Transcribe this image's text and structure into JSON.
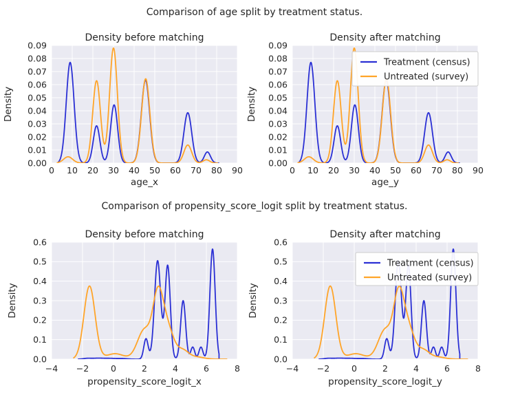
{
  "figure": {
    "row_titles": [
      "Comparison of age split by treatment status.",
      "Comparison of propensity_score_logit split by treatment status."
    ]
  },
  "colors": {
    "treatment": "#2a2fd4",
    "untreated": "#ffa428",
    "panel_bg": "#eaeaf2",
    "grid": "#ffffff",
    "text": "#262626",
    "legend_bg": "#ffffff",
    "legend_border": "#cccccc"
  },
  "legend": {
    "items": [
      {
        "label": "Treatment (census)",
        "color_key": "treatment"
      },
      {
        "label": "Untreated (survey)",
        "color_key": "untreated"
      }
    ]
  },
  "chart_data": [
    {
      "type": "line",
      "kind": "kde-density",
      "title": "Density before matching",
      "xlabel": "age_x",
      "ylabel": "Density",
      "xlim": [
        0,
        90
      ],
      "ylim": [
        0,
        0.09
      ],
      "xticks": [
        0,
        10,
        20,
        30,
        40,
        50,
        60,
        70,
        80,
        90
      ],
      "xtick_labels": [
        "0",
        "10",
        "20",
        "30",
        "40",
        "50",
        "60",
        "70",
        "80",
        "90"
      ],
      "yticks": [
        0,
        0.01,
        0.02,
        0.03,
        0.04,
        0.05,
        0.06,
        0.07,
        0.08,
        0.09
      ],
      "ytick_labels": [
        "0.00",
        "0.01",
        "0.02",
        "0.03",
        "0.04",
        "0.05",
        "0.06",
        "0.07",
        "0.08",
        "0.09"
      ],
      "grid": true,
      "show_legend": false,
      "series": [
        {
          "name": "Treatment (census)",
          "color_key": "treatment",
          "domain": [
            3.2,
            81
          ],
          "components": [
            {
              "mu": 9.0,
              "sigma": 1.9,
              "peak": 0.077
            },
            {
              "mu": 21.8,
              "sigma": 1.6,
              "peak": 0.0285
            },
            {
              "mu": 30.3,
              "sigma": 1.7,
              "peak": 0.0445
            },
            {
              "mu": 45.5,
              "sigma": 2.0,
              "peak": 0.0635
            },
            {
              "mu": 66.0,
              "sigma": 1.9,
              "peak": 0.0385
            },
            {
              "mu": 75.5,
              "sigma": 1.5,
              "peak": 0.0085
            }
          ]
        },
        {
          "name": "Untreated (survey)",
          "color_key": "untreated",
          "domain": [
            2.5,
            80.5
          ],
          "components": [
            {
              "mu": 8.0,
              "sigma": 2.2,
              "peak": 0.0048
            },
            {
              "mu": 21.8,
              "sigma": 1.9,
              "peak": 0.063
            },
            {
              "mu": 30.0,
              "sigma": 1.9,
              "peak": 0.088
            },
            {
              "mu": 45.6,
              "sigma": 2.0,
              "peak": 0.0645
            },
            {
              "mu": 66.0,
              "sigma": 1.9,
              "peak": 0.0138
            },
            {
              "mu": 75.0,
              "sigma": 1.6,
              "peak": 0.0025
            }
          ]
        }
      ]
    },
    {
      "type": "line",
      "kind": "kde-density",
      "title": "Density after matching",
      "xlabel": "age_y",
      "ylabel": "Density",
      "xlim": [
        0,
        90
      ],
      "ylim": [
        0,
        0.09
      ],
      "xticks": [
        0,
        10,
        20,
        30,
        40,
        50,
        60,
        70,
        80,
        90
      ],
      "xtick_labels": [
        "0",
        "10",
        "20",
        "30",
        "40",
        "50",
        "60",
        "70",
        "80",
        "90"
      ],
      "yticks": [
        0,
        0.01,
        0.02,
        0.03,
        0.04,
        0.05,
        0.06,
        0.07,
        0.08,
        0.09
      ],
      "ytick_labels": [
        "0.00",
        "0.01",
        "0.02",
        "0.03",
        "0.04",
        "0.05",
        "0.06",
        "0.07",
        "0.08",
        "0.09"
      ],
      "grid": true,
      "show_legend": true,
      "series": [
        {
          "name": "Treatment (census)",
          "color_key": "treatment",
          "domain": [
            3.2,
            81
          ],
          "components": [
            {
              "mu": 9.0,
              "sigma": 1.9,
              "peak": 0.077
            },
            {
              "mu": 21.8,
              "sigma": 1.6,
              "peak": 0.0285
            },
            {
              "mu": 30.3,
              "sigma": 1.7,
              "peak": 0.0445
            },
            {
              "mu": 45.5,
              "sigma": 2.0,
              "peak": 0.0635
            },
            {
              "mu": 66.0,
              "sigma": 1.9,
              "peak": 0.0385
            },
            {
              "mu": 75.5,
              "sigma": 1.5,
              "peak": 0.0085
            }
          ]
        },
        {
          "name": "Untreated (survey)",
          "color_key": "untreated",
          "domain": [
            2.5,
            80.5
          ],
          "components": [
            {
              "mu": 8.0,
              "sigma": 2.2,
              "peak": 0.0048
            },
            {
              "mu": 21.8,
              "sigma": 1.9,
              "peak": 0.063
            },
            {
              "mu": 30.0,
              "sigma": 1.9,
              "peak": 0.088
            },
            {
              "mu": 45.6,
              "sigma": 2.0,
              "peak": 0.0645
            },
            {
              "mu": 66.0,
              "sigma": 1.9,
              "peak": 0.0138
            },
            {
              "mu": 75.0,
              "sigma": 1.6,
              "peak": 0.0025
            }
          ]
        }
      ]
    },
    {
      "type": "line",
      "kind": "kde-density",
      "title": "Density before matching",
      "xlabel": "propensity_score_logit_x",
      "ylabel": "Density",
      "xlim": [
        -4,
        8
      ],
      "ylim": [
        0,
        0.6
      ],
      "xticks": [
        -4,
        -2,
        0,
        2,
        4,
        6,
        8
      ],
      "xtick_labels": [
        "−4",
        "−2",
        "0",
        "2",
        "4",
        "6",
        "8"
      ],
      "yticks": [
        0,
        0.1,
        0.2,
        0.3,
        0.4,
        0.5,
        0.6
      ],
      "ytick_labels": [
        "0.0",
        "0.1",
        "0.2",
        "0.3",
        "0.4",
        "0.5",
        "0.6"
      ],
      "grid": true,
      "show_legend": false,
      "series": [
        {
          "name": "Treatment (census)",
          "color_key": "treatment",
          "domain": [
            -2.3,
            6.82
          ],
          "components": [
            {
              "mu": -1.7,
              "sigma": 0.25,
              "peak": 0.004
            },
            {
              "mu": -1.0,
              "sigma": 0.35,
              "peak": 0.005
            },
            {
              "mu": -0.2,
              "sigma": 0.35,
              "peak": 0.004
            },
            {
              "mu": 0.6,
              "sigma": 0.3,
              "peak": 0.003
            },
            {
              "mu": 2.1,
              "sigma": 0.14,
              "peak": 0.105
            },
            {
              "mu": 2.85,
              "sigma": 0.2,
              "peak": 0.505
            },
            {
              "mu": 3.5,
              "sigma": 0.17,
              "peak": 0.48
            },
            {
              "mu": 4.5,
              "sigma": 0.16,
              "peak": 0.3
            },
            {
              "mu": 5.12,
              "sigma": 0.13,
              "peak": 0.062
            },
            {
              "mu": 5.65,
              "sigma": 0.13,
              "peak": 0.062
            },
            {
              "mu": 6.4,
              "sigma": 0.17,
              "peak": 0.565
            }
          ]
        },
        {
          "name": "Untreated (survey)",
          "color_key": "untreated",
          "domain": [
            -2.6,
            7.35
          ],
          "components": [
            {
              "mu": -1.55,
              "sigma": 0.36,
              "peak": 0.375
            },
            {
              "mu": 0.1,
              "sigma": 0.55,
              "peak": 0.028
            },
            {
              "mu": 2.0,
              "sigma": 0.45,
              "peak": 0.15
            },
            {
              "mu": 2.85,
              "sigma": 0.32,
              "peak": 0.26
            },
            {
              "mu": 3.4,
              "sigma": 0.45,
              "peak": 0.18
            },
            {
              "mu": 4.5,
              "sigma": 0.35,
              "peak": 0.04
            },
            {
              "mu": 5.3,
              "sigma": 0.5,
              "peak": 0.012
            }
          ]
        }
      ]
    },
    {
      "type": "line",
      "kind": "kde-density",
      "title": "Density after matching",
      "xlabel": "propensity_score_logit_y",
      "ylabel": "Density",
      "xlim": [
        -4,
        8
      ],
      "ylim": [
        0,
        0.6
      ],
      "xticks": [
        -4,
        -2,
        0,
        2,
        4,
        6,
        8
      ],
      "xtick_labels": [
        "−4",
        "−2",
        "0",
        "2",
        "4",
        "6",
        "8"
      ],
      "yticks": [
        0,
        0.1,
        0.2,
        0.3,
        0.4,
        0.5,
        0.6
      ],
      "ytick_labels": [
        "0.0",
        "0.1",
        "0.2",
        "0.3",
        "0.4",
        "0.5",
        "0.6"
      ],
      "grid": true,
      "show_legend": true,
      "series": [
        {
          "name": "Treatment (census)",
          "color_key": "treatment",
          "domain": [
            -2.3,
            6.82
          ],
          "components": [
            {
              "mu": -1.7,
              "sigma": 0.25,
              "peak": 0.004
            },
            {
              "mu": -1.0,
              "sigma": 0.35,
              "peak": 0.005
            },
            {
              "mu": -0.2,
              "sigma": 0.35,
              "peak": 0.004
            },
            {
              "mu": 0.6,
              "sigma": 0.3,
              "peak": 0.003
            },
            {
              "mu": 2.1,
              "sigma": 0.14,
              "peak": 0.105
            },
            {
              "mu": 2.85,
              "sigma": 0.2,
              "peak": 0.505
            },
            {
              "mu": 3.5,
              "sigma": 0.17,
              "peak": 0.48
            },
            {
              "mu": 4.5,
              "sigma": 0.16,
              "peak": 0.3
            },
            {
              "mu": 5.12,
              "sigma": 0.13,
              "peak": 0.062
            },
            {
              "mu": 5.65,
              "sigma": 0.13,
              "peak": 0.062
            },
            {
              "mu": 6.4,
              "sigma": 0.17,
              "peak": 0.565
            }
          ]
        },
        {
          "name": "Untreated (survey)",
          "color_key": "untreated",
          "domain": [
            -2.6,
            7.35
          ],
          "components": [
            {
              "mu": -1.55,
              "sigma": 0.36,
              "peak": 0.375
            },
            {
              "mu": 0.1,
              "sigma": 0.55,
              "peak": 0.028
            },
            {
              "mu": 2.0,
              "sigma": 0.45,
              "peak": 0.15
            },
            {
              "mu": 2.85,
              "sigma": 0.32,
              "peak": 0.26
            },
            {
              "mu": 3.4,
              "sigma": 0.45,
              "peak": 0.18
            },
            {
              "mu": 4.5,
              "sigma": 0.35,
              "peak": 0.04
            },
            {
              "mu": 5.3,
              "sigma": 0.5,
              "peak": 0.012
            }
          ]
        }
      ]
    }
  ]
}
